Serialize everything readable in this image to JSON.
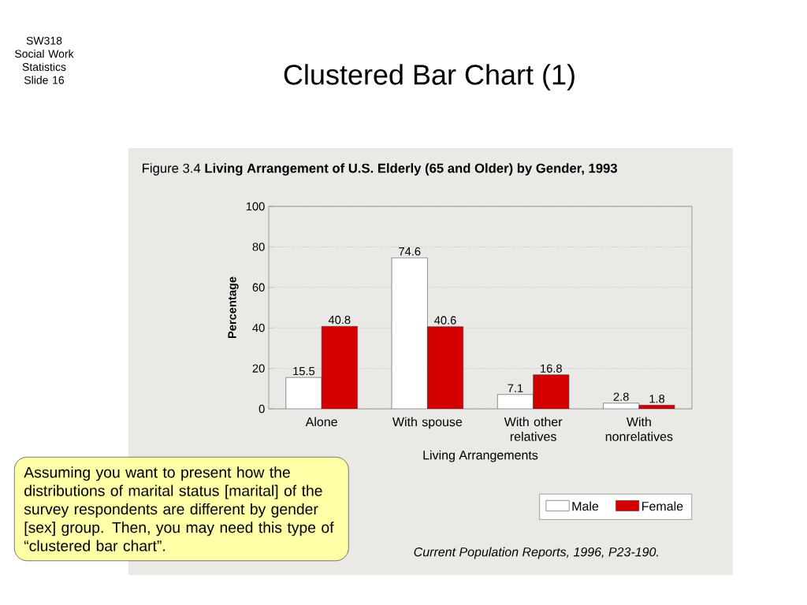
{
  "chart_data": {
    "type": "bar",
    "title": "Clustered Bar Chart (1)",
    "subtitle": "Figure 3.4   **Living Arrangement of U.S. Elderly (65 and Older) by Gender, 1993**",
    "xlabel": "Living Arrangements",
    "ylabel": "Percentage",
    "categories": [
      "Alone",
      "With spouse",
      "With other relatives",
      "With nonrelatives"
    ],
    "series": [
      {
        "name": "Male",
        "color": "#ffffff",
        "values": [
          15.5,
          74.6,
          7.1,
          2.8
        ]
      },
      {
        "name": "Female",
        "color": "#d40000",
        "values": [
          40.8,
          40.6,
          16.8,
          1.8
        ]
      }
    ],
    "ylim": [
      0,
      100
    ],
    "yticks": [
      0,
      20,
      40,
      60,
      80,
      100
    ],
    "grid": "y",
    "legend": "bottom right",
    "data_labels": true,
    "annotations": [
      "SW318 Social Work Statistics Slide 16",
      "Assuming you want to present how the distributions of marital status [marital] of the survey respondents are different by gender [sex] group. Then, you may need this type of “clustered bar chart”.",
      "Current Population Reports, 1996, P23-190."
    ]
  }
}
